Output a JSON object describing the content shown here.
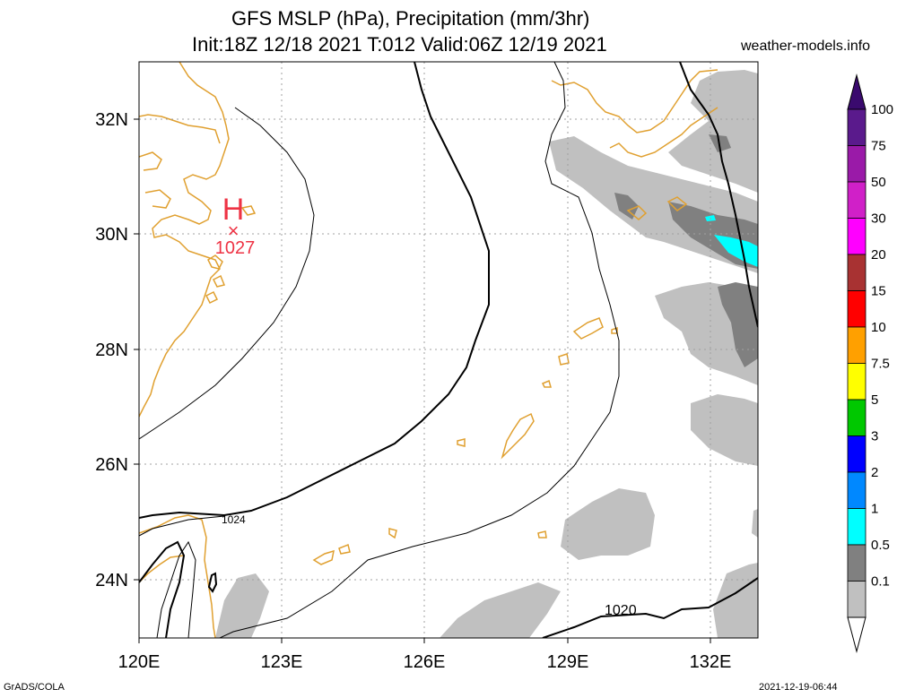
{
  "title": {
    "line1": "GFS MSLP (hPa), Precipitation (mm/3hr)",
    "line2": "Init:18Z 12/18 2021 T:012 Valid:06Z 12/19 2021"
  },
  "credit": "weather-models.info",
  "footer": {
    "left": "GrADS/COLA",
    "right": "2021-12-19-06:44"
  },
  "map": {
    "lon_range": [
      120,
      133
    ],
    "lat_range": [
      23,
      33
    ],
    "lon_ticks": [
      "120E",
      "123E",
      "126E",
      "129E",
      "132E"
    ],
    "lat_ticks": [
      "32N",
      "30N",
      "28N",
      "26N",
      "24N"
    ],
    "high": {
      "symbol": "H",
      "marker": "×",
      "value": "1027",
      "lon": 122.0,
      "lat": 30.0
    },
    "contour_labels": [
      "1024",
      "1020"
    ],
    "colors": {
      "coast": "#e0a030",
      "high": "#ee3344",
      "contour": "#000000"
    }
  },
  "colorbar": {
    "labels": [
      "100",
      "75",
      "50",
      "30",
      "20",
      "15",
      "10",
      "7.5",
      "5",
      "3",
      "2",
      "1",
      "0.5",
      "0.1"
    ],
    "colors": [
      "#5a1a8c",
      "#9a1aa8",
      "#d020c8",
      "#ff00ff",
      "#a83232",
      "#ff0000",
      "#ffa000",
      "#ffff00",
      "#00c800",
      "#0000ff",
      "#0088ff",
      "#00ffff",
      "#808080",
      "#c0c0c0"
    ]
  }
}
